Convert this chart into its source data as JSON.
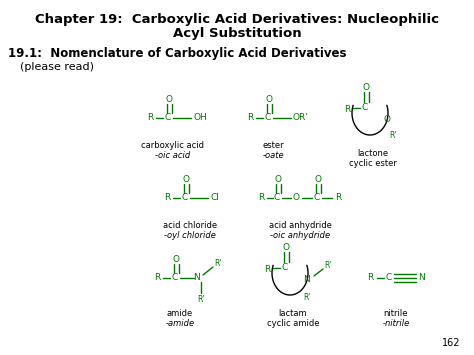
{
  "title_line1": "Chapter 19:  Carboxylic Acid Derivatives: Nucleophilic",
  "title_line2": "Acyl Substitution",
  "subtitle_bold": "19.1:  Nomenclature of Carboxylic Acid Derivatives",
  "subtitle_normal": "(please read)",
  "bg_color": "#ffffff",
  "green": "#007700",
  "black": "#000000",
  "page_number": "162",
  "figw": 4.74,
  "figh": 3.55,
  "dpi": 100
}
